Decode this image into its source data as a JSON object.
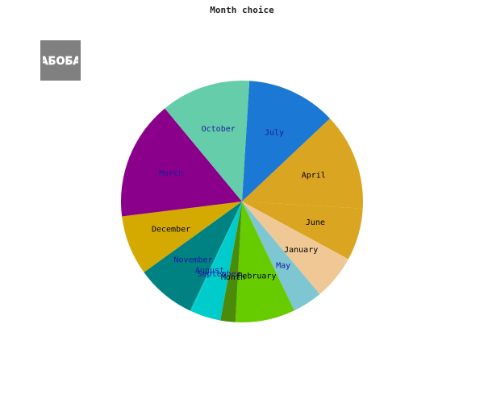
{
  "chart_data": {
    "type": "pie",
    "title": "Month choice",
    "slices": [
      {
        "label": "July",
        "value": 12,
        "color": "#1b78d4",
        "label_color": "#1a1aa0"
      },
      {
        "label": "April",
        "value": 13,
        "color": "#daa520",
        "label_color": "#000000"
      },
      {
        "label": "June",
        "value": 7,
        "color": "#daa520",
        "label_color": "#000000"
      },
      {
        "label": "January",
        "value": 6,
        "color": "#f0c896",
        "label_color": "#000000"
      },
      {
        "label": "May",
        "value": 4,
        "color": "#7ec6d2",
        "label_color": "#1a1aa0"
      },
      {
        "label": "February",
        "value": 8,
        "color": "#66cc00",
        "label_color": "#000000"
      },
      {
        "label": "Month",
        "value": 2,
        "color": "#4a8c0a",
        "label_color": "#000000"
      },
      {
        "label": "September",
        "value": 4,
        "color": "#00cccc",
        "label_color": "#1a1aa0"
      },
      {
        "label": "August",
        "value": 0.2,
        "color": "#00cccc",
        "label_color": "#1a1aa0"
      },
      {
        "label": "November",
        "value": 8,
        "color": "#008282",
        "label_color": "#1a1aa0"
      },
      {
        "label": "December",
        "value": 8,
        "color": "#d4aa00",
        "label_color": "#000000"
      },
      {
        "label": "March",
        "value": 16,
        "color": "#8b008b",
        "label_color": "#1a1aa0"
      },
      {
        "label": "October",
        "value": 12,
        "color": "#66cdaa",
        "label_color": "#1a1aa0"
      }
    ]
  },
  "logo": {
    "text": "АБОБА",
    "background": "#808080"
  }
}
